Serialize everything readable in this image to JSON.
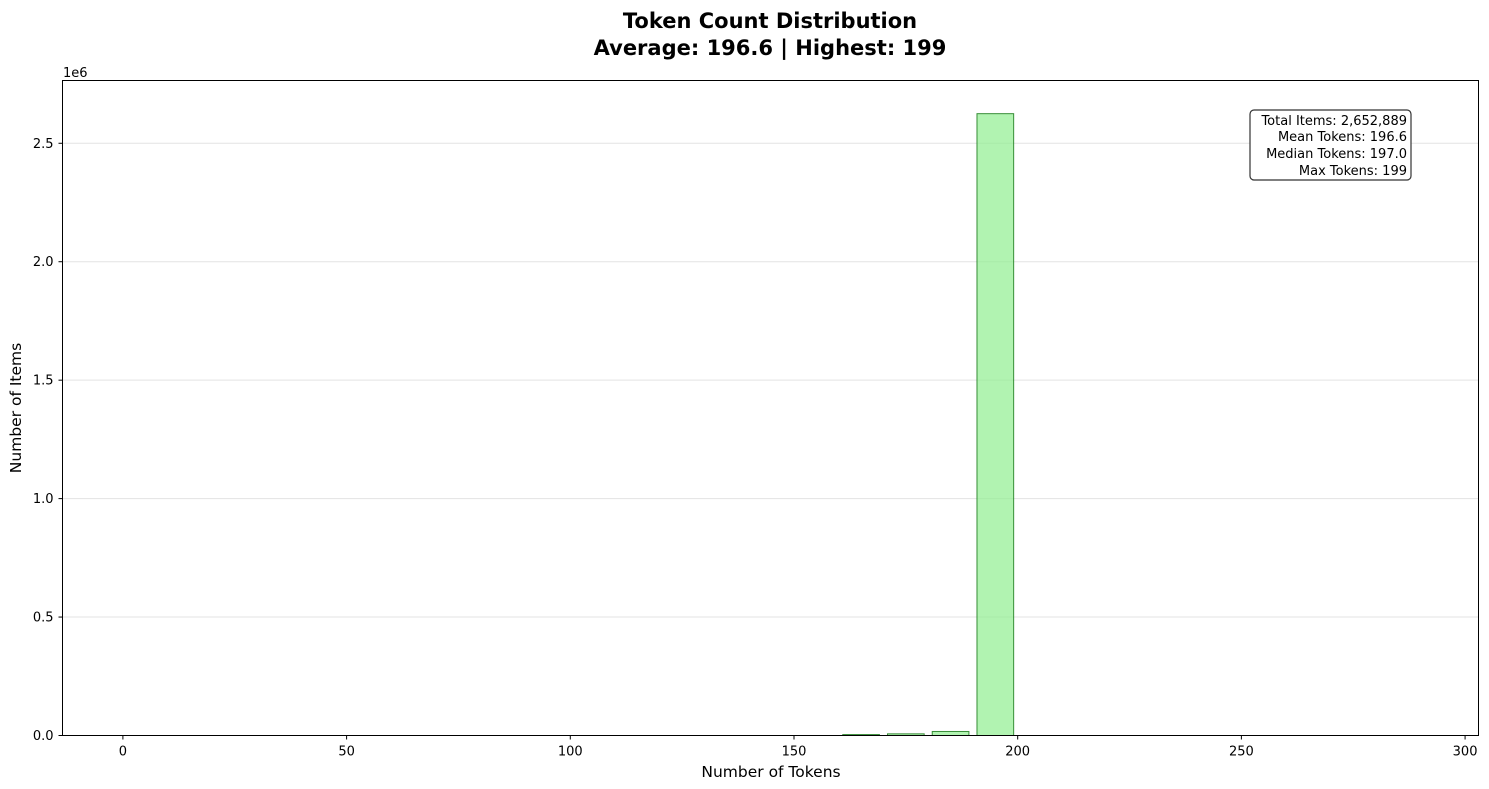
{
  "chart_data": {
    "type": "bar",
    "title_line1": "Token Count Distribution",
    "title_line2": "Average: 196.6 | Highest: 199",
    "xlabel": "Number of Tokens",
    "ylabel": "Number of Items",
    "y_offset_label": "1e6",
    "xlim": [
      -13.5,
      303
    ],
    "ylim": [
      0,
      2765000
    ],
    "x_ticks": [
      0,
      50,
      100,
      150,
      200,
      250,
      300
    ],
    "x_tick_labels": [
      "0",
      "50",
      "100",
      "150",
      "200",
      "250",
      "300"
    ],
    "y_ticks": [
      0,
      500000,
      1000000,
      1500000,
      2000000,
      2500000
    ],
    "y_tick_labels": [
      "0.0",
      "0.5",
      "1.0",
      "1.5",
      "2.0",
      "2.5"
    ],
    "grid": "y",
    "bin_width": 10,
    "bin_starts": [
      0,
      10,
      20,
      30,
      40,
      50,
      60,
      70,
      80,
      90,
      100,
      110,
      120,
      130,
      140,
      150,
      160,
      170,
      180,
      190,
      200,
      210,
      220,
      230,
      240,
      250,
      260,
      270,
      280,
      290
    ],
    "values": [
      0,
      0,
      0,
      0,
      0,
      0,
      0,
      0,
      0,
      0,
      0,
      0,
      0,
      0,
      0,
      0,
      4000,
      7000,
      17000,
      2625000,
      0,
      0,
      0,
      0,
      0,
      0,
      0,
      0,
      0,
      0
    ],
    "colors": {
      "bar_fill": "#90ee90",
      "bar_edge": "#1b7a1b"
    },
    "stats_box": {
      "position": "top-right",
      "lines": [
        "Total Items: 2,652,889",
        "Mean Tokens: 196.6",
        "Median Tokens: 197.0",
        "Max Tokens: 199"
      ]
    }
  }
}
